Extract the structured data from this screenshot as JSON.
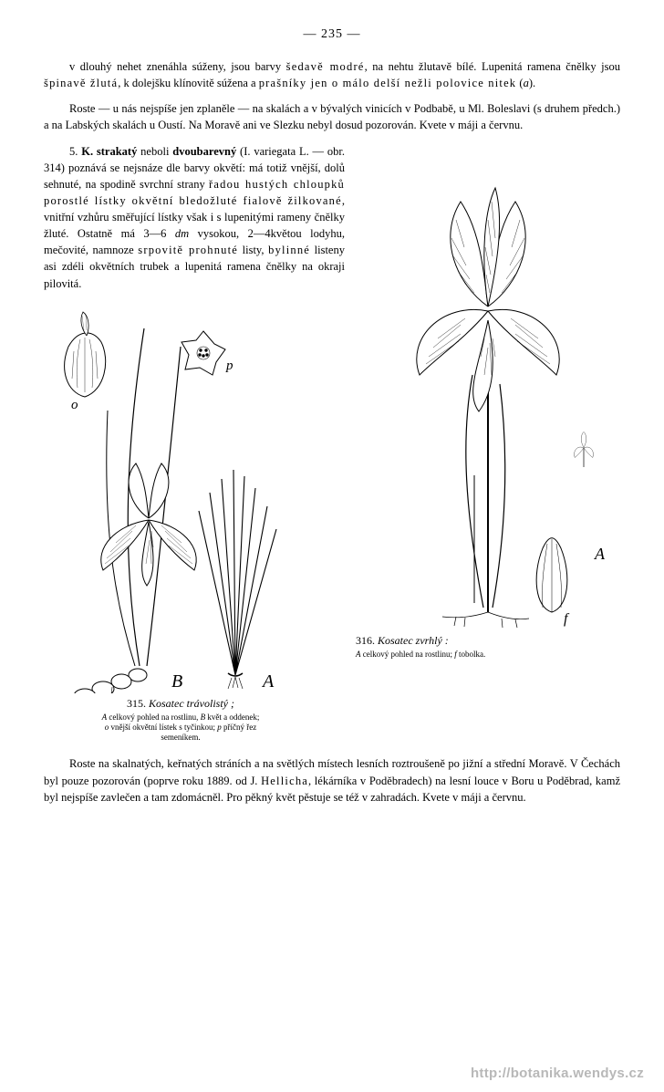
{
  "pageNumber": "—  235  —",
  "para1": "v dlouhý nehet znenáhla súženy, jsou barvy <span class='spaced-sm'>šedavě modré</span>, na nehtu žlutavě bílé. Lupenitá ramena čnělky jsou <span class='spaced-sm'>špinavě žlutá</span>, k dolejšku klínovitě súžena a <span class='spaced-sm'>prašníky jen o málo delší nežli polovice nitek</span> (<span class='italic'>a</span>).",
  "para2": "Roste — u nás nejspíše jen zplaněle — na skalách a v bývalých vinicích v Podbabě, u Ml. Boleslavi (s druhem předch.) a na Labských skalách u Oustí. Na Moravě ani ve Slezku nebyl dosud pozorován. Kvete v máji a červnu.",
  "para3_start": "5. <span class='bold'>K. strakatý</span> neboli <span class='bold'>dvoubarevný</span> (I. variegata L. — obr. 314) poznává se nejsnáze dle barvy okvětí: má totiž vnější, dolů sehnuté, na spodině svrchní strany <span class='spaced-sm'>řadou hustých chloupků porostlé lístky okvětní bledožluté fialově žilkované</span>, vnitřní vzhůru směřující lístky však i s lupenitými rameny čnělky žluté. Ostatně má 3—6 <span class='italic'>dm</span> vysokou, 2—4květou lodyhu, mečovité, namnoze <span class='spaced-sm'>srpovitě prohnuté</span> listy, <span class='spaced-sm'>bylinné</span> listeny asi zdéli okvětních trubek a lupenitá ramena čnělky na okraji pilovitá.",
  "fig315_num": "315. <span class='italic'>Kosatec trávolistý ;</span>",
  "fig315_sub": "<span class='italic'>A</span> celkový pohled na rostlinu, <span class='italic'>B</span> květ a oddenek;<br><span class='italic'>o</span> vnější okvětní lístek s tyčinkou; <span class='italic'>p</span> příčný řez<br>semeníkem.",
  "fig316_num": "316. <span class='italic'>Kosatec zvrhlý :</span>",
  "fig316_sub": "<span class='italic'>A</span> celkový pohled na rostlinu; <span class='italic'>f</span> tobolka.",
  "para4": "Roste na skalnatých, keřnatých stráních a na světlých místech lesních roztroušeně po jižní a střední Moravě. V Čechách byl pouze pozorován (poprve roku 1889. od J. <span class='spaced-sm'>Hellicha</span>, lékárníka v Poděbradech) na lesní louce v Boru u Poděbrad, kamž byl nejspíše zavlečen a tam zdomácněl. Pro pěkný květ pěstuje se též v zahradách. Kvete v máji a červnu.",
  "watermark": "http://botanika.wendys.cz",
  "labels": {
    "o": "o",
    "p": "p",
    "A": "A",
    "B": "B",
    "f": "f"
  }
}
